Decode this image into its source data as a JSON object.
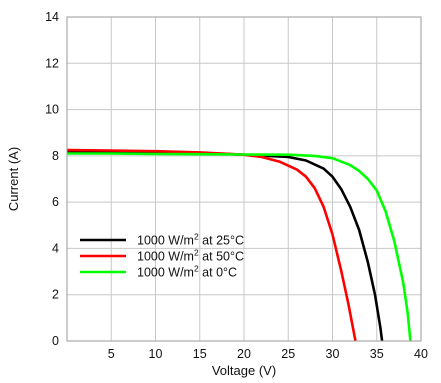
{
  "chart_data": {
    "type": "line",
    "xlabel": "Voltage (V)",
    "ylabel": "Current (A)",
    "xlim": [
      0,
      40
    ],
    "ylim": [
      0,
      14
    ],
    "x_ticks": [
      5,
      10,
      15,
      20,
      25,
      30,
      35,
      40
    ],
    "y_ticks": [
      0,
      2,
      4,
      6,
      8,
      10,
      12,
      14
    ],
    "grid": true,
    "legend_position": "bottom-left",
    "series": [
      {
        "legend_main": "1000 W/m",
        "legend_sup": "2",
        "legend_tail": " at 25°C",
        "color": "#000000",
        "x": [
          0,
          5,
          10,
          15,
          20,
          25,
          27,
          29,
          30,
          31,
          32,
          33,
          34,
          34.8,
          35.4,
          35.6
        ],
        "y": [
          8.2,
          8.18,
          8.16,
          8.12,
          8.05,
          7.95,
          7.8,
          7.45,
          7.1,
          6.55,
          5.8,
          4.8,
          3.4,
          2.0,
          0.6,
          0
        ]
      },
      {
        "legend_main": "1000 W/m",
        "legend_sup": "2",
        "legend_tail": " at 50°C",
        "color": "#ff0000",
        "x": [
          0,
          5,
          10,
          15,
          20,
          22,
          24,
          26,
          27,
          28,
          29,
          30,
          31,
          31.8,
          32.4,
          32.6
        ],
        "y": [
          8.25,
          8.23,
          8.2,
          8.15,
          8.05,
          7.95,
          7.75,
          7.4,
          7.1,
          6.6,
          5.8,
          4.6,
          3.0,
          1.6,
          0.4,
          0
        ]
      },
      {
        "legend_main": "1000 W/m",
        "legend_sup": "2",
        "legend_tail": " at 0°C",
        "color": "#00ff00",
        "x": [
          0,
          5,
          10,
          15,
          20,
          25,
          28,
          30,
          32,
          33,
          34,
          35,
          36,
          37,
          38,
          38.5,
          38.8
        ],
        "y": [
          8.1,
          8.1,
          8.08,
          8.07,
          8.06,
          8.05,
          8.0,
          7.9,
          7.6,
          7.35,
          7.0,
          6.5,
          5.6,
          4.3,
          2.5,
          1.2,
          0
        ]
      }
    ]
  }
}
